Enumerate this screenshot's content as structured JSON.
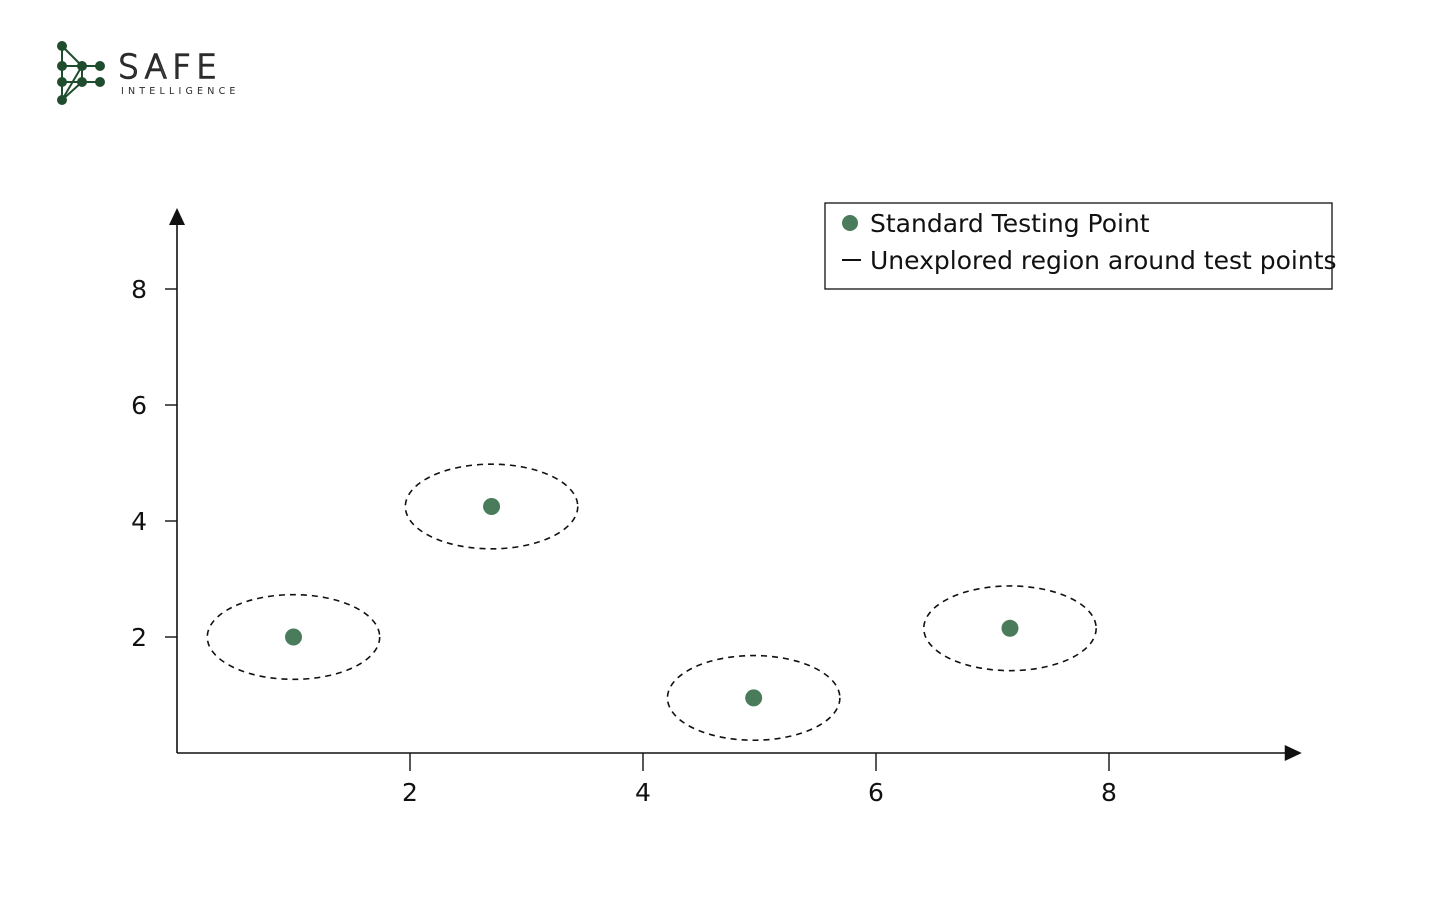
{
  "brand": {
    "name": "SAFE",
    "tagline": "INTELLIGENCE",
    "color": "#1f4d2e"
  },
  "chart_data": {
    "type": "scatter",
    "title": "",
    "xlabel": "",
    "ylabel": "",
    "xlim": [
      0,
      9.5
    ],
    "ylim": [
      0,
      9
    ],
    "xticks": [
      2,
      4,
      6,
      8
    ],
    "yticks": [
      2,
      4,
      6,
      8
    ],
    "grid": false,
    "legend_position": "top-right",
    "point_color": "#4a7c5c",
    "series": [
      {
        "name": "Standard Testing Point",
        "marker": "circle",
        "points": [
          {
            "x": 1.0,
            "y": 2.0
          },
          {
            "x": 2.7,
            "y": 4.25
          },
          {
            "x": 4.95,
            "y": 0.95
          },
          {
            "x": 7.15,
            "y": 2.15
          }
        ]
      },
      {
        "name": "Unexplored region around test points",
        "marker": "dashed-ellipse",
        "regions": [
          {
            "cx": 1.0,
            "cy": 2.0,
            "rx": 0.74,
            "ry": 0.73
          },
          {
            "cx": 2.7,
            "cy": 4.25,
            "rx": 0.74,
            "ry": 0.73
          },
          {
            "cx": 4.95,
            "cy": 0.95,
            "rx": 0.74,
            "ry": 0.73
          },
          {
            "cx": 7.15,
            "cy": 2.15,
            "rx": 0.74,
            "ry": 0.73
          }
        ]
      }
    ]
  }
}
